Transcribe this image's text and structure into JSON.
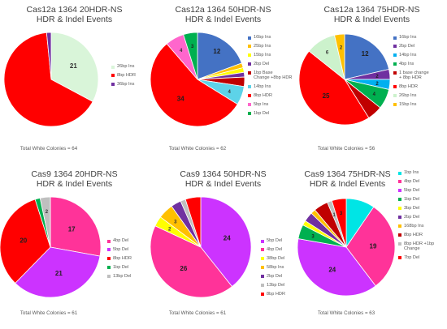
{
  "chart_data": [
    {
      "type": "pie",
      "title": "Cas12a 1364 20HDR-NS",
      "subtitle": "HDR & Indel Events",
      "footer": "Total White Colonies = 64",
      "categories": [
        "26bp Ins",
        "8bp HDR",
        "36bp Ins"
      ],
      "values": [
        21,
        42,
        1
      ],
      "colors": [
        "#d9f5d9",
        "#ff0000",
        "#7030a0"
      ],
      "slice_labels": [
        "21",
        "",
        ""
      ]
    },
    {
      "type": "pie",
      "title": "Cas12a 1364 50HDR-NS",
      "subtitle": "HDR & Indel Events",
      "footer": "Total White Colonies = 62",
      "categories": [
        "16bp Ins",
        "25bp Ins",
        "15bp Ins",
        "2bp Del",
        "1bp Base Change +8bp HDR",
        "14bp Ins",
        "8bp HDR",
        "5bp Ins",
        "1bp Del"
      ],
      "values": [
        12,
        1,
        1,
        1,
        2,
        4,
        34,
        4,
        3
      ],
      "colors": [
        "#4472c4",
        "#ffc000",
        "#ffff00",
        "#7030a0",
        "#c00000",
        "#5dd3e8",
        "#ff0000",
        "#ff66cc",
        "#00b050"
      ],
      "slice_labels": [
        "12",
        "",
        "",
        "",
        "",
        "4",
        "34",
        "4",
        "3"
      ]
    },
    {
      "type": "pie",
      "title": "Cas12a 1364 75HDR-NS",
      "subtitle": "HDR & Indel Events",
      "footer": "Total White Colonies = 56",
      "categories": [
        "16bp Ins",
        "2bp Del",
        "14bp Ins",
        "4bp Ins",
        "1 base change + 8bp HDR",
        "8bp HDR",
        "26bp Ins",
        "15bp Ins"
      ],
      "values": [
        12,
        2,
        2,
        4,
        3,
        25,
        6,
        2
      ],
      "colors": [
        "#4472c4",
        "#7030a0",
        "#00b0f0",
        "#00b050",
        "#c00000",
        "#ff0000",
        "#ccf2cc",
        "#ffc000"
      ],
      "slice_labels": [
        "12",
        "2",
        "2",
        "4",
        "",
        "25",
        "6",
        "2"
      ]
    },
    {
      "type": "pie",
      "title": "Cas9 1364 20HDR-NS",
      "subtitle": "HDR & Indel Events",
      "footer": "Total White Colonies = 61",
      "categories": [
        "4bp Del",
        "5bp Del",
        "8bp HDR",
        "1bp Del",
        "13bp Del"
      ],
      "values": [
        17,
        21,
        20,
        1,
        2
      ],
      "colors": [
        "#ff3399",
        "#cc33ff",
        "#ff0000",
        "#00b050",
        "#bfbfbf"
      ],
      "slice_labels": [
        "17",
        "21",
        "20",
        "",
        "2"
      ]
    },
    {
      "type": "pie",
      "title": "Cas9 1364 50HDR-NS",
      "subtitle": "HDR & Indel Events",
      "footer": "Total White Colonies = 61",
      "categories": [
        "5bp Del",
        "4bp Del",
        "38bp Del",
        "58bp Ins",
        "2bp Del",
        "13bp Del",
        "8bp HDR"
      ],
      "values": [
        24,
        26,
        2,
        3,
        2,
        1,
        3
      ],
      "colors": [
        "#cc33ff",
        "#ff3399",
        "#ffff00",
        "#ffc000",
        "#7030a0",
        "#bfbfbf",
        "#ff0000"
      ],
      "slice_labels": [
        "24",
        "26",
        "2",
        "3",
        "",
        "",
        ""
      ]
    },
    {
      "type": "pie",
      "title": "Cas9 1364 75HDR-NS",
      "subtitle": "HDR & Indel Events",
      "footer": "Total White Colonies = 63",
      "categories": [
        "1bp Ins",
        "4bp Del",
        "5bp Del",
        "1bp Del",
        "3bp Del",
        "2bp Del",
        "168bp Ins",
        "8bp HDR",
        "8bp HDR +1bp Change",
        "7bp Del"
      ],
      "values": [
        6,
        19,
        24,
        3,
        1,
        2,
        1,
        3,
        1,
        3
      ],
      "colors": [
        "#00e5e5",
        "#ff3399",
        "#cc33ff",
        "#00b050",
        "#ffff00",
        "#7030a0",
        "#ffc000",
        "#c00000",
        "#bfbfbf",
        "#ff0000"
      ],
      "slice_labels": [
        "",
        "19",
        "24",
        "3",
        "",
        "",
        "",
        "",
        "1",
        "3"
      ]
    }
  ]
}
